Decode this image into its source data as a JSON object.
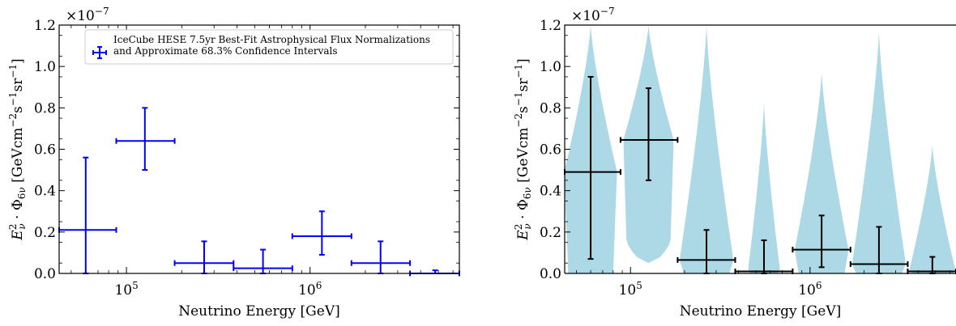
{
  "chart_data": [
    {
      "type": "scatter",
      "subtype": "errorbar",
      "x_scale": "log",
      "xlabel": "Neutrino Energy [GeV]",
      "ylabel": "E_ν^2 · Φ_6ν [GeV cm^-2 s^-1 sr^-1]",
      "ylabel_parts": {
        "lhs": "E",
        "lhs_sup": "2",
        "lhs_sub": "ν",
        "phi": " · Φ",
        "phi_sub": "6ν",
        "units": " [GeVcm",
        "u1": "−2",
        "s": "s",
        "u2": "−1",
        "sr": "sr",
        "u3": "−1",
        "close": "]"
      },
      "y_multiplier": "×10^-7",
      "y_multiplier_parts": {
        "base": "×10",
        "exp": "−7"
      },
      "xlim": [
        43000,
        6500000
      ],
      "ylim": [
        0.0,
        1.2
      ],
      "x_ticks": [
        {
          "value": 100000,
          "base": "10",
          "exp": "5"
        },
        {
          "value": 1000000,
          "base": "10",
          "exp": "6"
        }
      ],
      "y_ticks": [
        {
          "value": 0.0,
          "label": "0.0"
        },
        {
          "value": 0.2,
          "label": "0.2"
        },
        {
          "value": 0.4,
          "label": "0.4"
        },
        {
          "value": 0.6,
          "label": "0.6"
        },
        {
          "value": 0.8,
          "label": "0.8"
        },
        {
          "value": 1.0,
          "label": "1.0"
        },
        {
          "value": 1.2,
          "label": "1.2"
        }
      ],
      "grid": false,
      "legend": {
        "placement": "top-right",
        "lines": [
          "IceCube HESE 7.5yr Best-Fit Astrophysical Flux Normalizations",
          "and Approximate 68.3% Confidence Intervals"
        ]
      },
      "color": "#0000ff",
      "points": [
        {
          "x_lo": 43000,
          "x": 60000,
          "x_hi": 88000,
          "y": 0.21,
          "y_lo": 0.0,
          "y_hi": 0.56
        },
        {
          "x_lo": 88000,
          "x": 126000,
          "x_hi": 183000,
          "y": 0.64,
          "y_lo": 0.5,
          "y_hi": 0.8
        },
        {
          "x_lo": 183000,
          "x": 265000,
          "x_hi": 383000,
          "y": 0.05,
          "y_lo": 0.0,
          "y_hi": 0.155
        },
        {
          "x_lo": 383000,
          "x": 554000,
          "x_hi": 800000,
          "y": 0.025,
          "y_lo": 0.0,
          "y_hi": 0.115
        },
        {
          "x_lo": 800000,
          "x": 1160000,
          "x_hi": 1680000,
          "y": 0.18,
          "y_lo": 0.09,
          "y_hi": 0.3
        },
        {
          "x_lo": 1680000,
          "x": 2420000,
          "x_hi": 3500000,
          "y": 0.05,
          "y_lo": 0.0,
          "y_hi": 0.155
        },
        {
          "x_lo": 3500000,
          "x": 4800000,
          "x_hi": 6500000,
          "y": 0.0,
          "y_lo": 0.0,
          "y_hi": 0.015
        }
      ]
    },
    {
      "type": "violin",
      "x_scale": "log",
      "xlabel": "Neutrino Energy [GeV]",
      "ylabel": "E_ν^2 · Φ_6ν [GeV cm^-2 s^-1 sr^-1]",
      "y_multiplier": "×10^-7",
      "xlim": [
        43000,
        6500000
      ],
      "ylim": [
        0.0,
        1.2
      ],
      "grid": false,
      "fill_color": "#add8e6",
      "errorbar_color": "#000000",
      "bins": [
        {
          "x_lo": 43000,
          "x": 60000,
          "x_hi": 88000,
          "y": 0.49,
          "y_lo": 0.07,
          "y_hi": 0.95,
          "violin_top": 1.2,
          "max_halfwidth_dex": 0.147
        },
        {
          "x_lo": 88000,
          "x": 126000,
          "x_hi": 183000,
          "y": 0.645,
          "y_lo": 0.45,
          "y_hi": 0.895,
          "violin_bottom": 0.05,
          "violin_top": 1.2,
          "max_halfwidth_dex": 0.14
        },
        {
          "x_lo": 183000,
          "x": 265000,
          "x_hi": 383000,
          "y": 0.065,
          "y_lo": 0.0,
          "y_hi": 0.21,
          "violin_top": 1.2,
          "max_halfwidth_dex": 0.15
        },
        {
          "x_lo": 383000,
          "x": 554000,
          "x_hi": 800000,
          "y": 0.01,
          "y_lo": 0.0,
          "y_hi": 0.16,
          "violin_top": 0.83,
          "max_halfwidth_dex": 0.09
        },
        {
          "x_lo": 800000,
          "x": 1160000,
          "x_hi": 1680000,
          "y": 0.115,
          "y_lo": 0.03,
          "y_hi": 0.28,
          "violin_top": 0.97,
          "max_halfwidth_dex": 0.15
        },
        {
          "x_lo": 1680000,
          "x": 2420000,
          "x_hi": 3500000,
          "y": 0.045,
          "y_lo": 0.0,
          "y_hi": 0.225,
          "violin_top": 1.17,
          "max_halfwidth_dex": 0.15
        },
        {
          "x_lo": 3500000,
          "x": 4800000,
          "x_hi": 6500000,
          "y": 0.01,
          "y_lo": 0.0,
          "y_hi": 0.08,
          "violin_top": 0.62,
          "max_halfwidth_dex": 0.13
        }
      ]
    }
  ]
}
